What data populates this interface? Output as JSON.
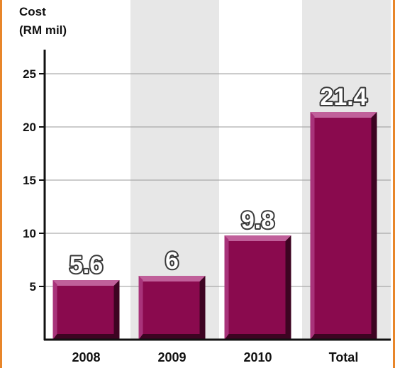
{
  "chart_data": {
    "type": "bar",
    "title": "",
    "ylabel": "Cost\n(RM mil)",
    "ylabel_lines": [
      "Cost",
      "(RM mil)"
    ],
    "xlabel": "",
    "categories": [
      "2008",
      "2009",
      "2010",
      "Total"
    ],
    "values": [
      5.6,
      6,
      9.8,
      21.4
    ],
    "data_labels": [
      "5.6",
      "6",
      "9.8",
      "21.4"
    ],
    "ylim": [
      0,
      28
    ],
    "yticks": [
      5,
      10,
      15,
      20,
      25
    ],
    "ytick_labels": [
      "5",
      "10",
      "15",
      "20",
      "25"
    ],
    "grid": true,
    "legend": "none",
    "colors": {
      "bar": "#8a0a4e",
      "bar_highlight": "#c0609a",
      "bar_shadow": "#3d0422",
      "band": "#e7e7e7",
      "grid": "#9a9a9a",
      "frame": "#e8862a"
    }
  }
}
